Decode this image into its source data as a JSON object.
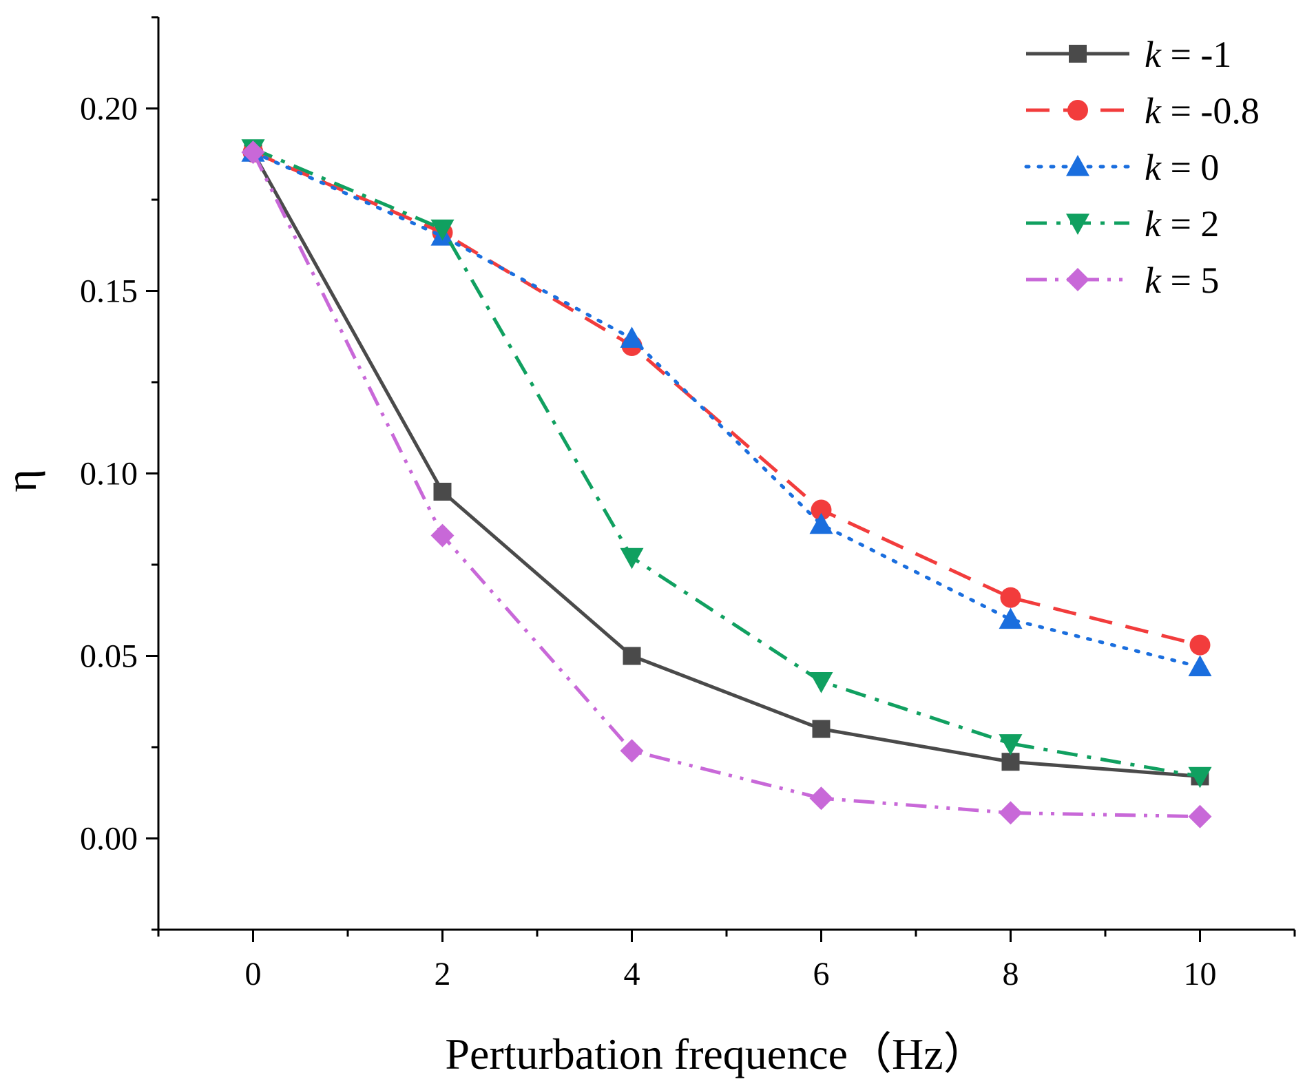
{
  "chart_data": {
    "type": "line",
    "title": "",
    "xlabel": "Perturbation frequence（Hz）",
    "ylabel": "η",
    "xlim": [
      -1,
      11
    ],
    "ylim": [
      -0.025,
      0.225
    ],
    "x": [
      0,
      2,
      4,
      6,
      8,
      10
    ],
    "xticks": [
      0,
      2,
      4,
      6,
      8,
      10
    ],
    "xtick_labels": [
      "0",
      "2",
      "4",
      "6",
      "8",
      "10"
    ],
    "yticks": [
      0.0,
      0.05,
      0.1,
      0.15,
      0.2
    ],
    "ytick_labels": [
      "0.00",
      "0.05",
      "0.10",
      "0.15",
      "0.20"
    ],
    "legend_position": "top-right",
    "series": [
      {
        "name": "k = -1",
        "var": "k",
        "value_label": "= -1",
        "values": [
          0.188,
          0.095,
          0.05,
          0.03,
          0.021,
          0.017
        ],
        "color": "#4a4a4a",
        "dash": "solid",
        "marker": "square"
      },
      {
        "name": "k = -0.8",
        "var": "k",
        "value_label": "= -0.8",
        "values": [
          0.188,
          0.166,
          0.135,
          0.09,
          0.066,
          0.053
        ],
        "color": "#f23c3c",
        "dash": "dash",
        "marker": "circle"
      },
      {
        "name": "k = 0",
        "var": "k",
        "value_label": "= 0",
        "values": [
          0.188,
          0.165,
          0.137,
          0.086,
          0.06,
          0.047
        ],
        "color": "#1a6ede",
        "dash": "dot",
        "marker": "triangle-up"
      },
      {
        "name": "k = 2",
        "var": "k",
        "value_label": "= 2",
        "values": [
          0.189,
          0.167,
          0.077,
          0.043,
          0.026,
          0.017
        ],
        "color": "#10a060",
        "dash": "dashdot",
        "marker": "triangle-down"
      },
      {
        "name": "k = 5",
        "var": "k",
        "value_label": "= 5",
        "values": [
          0.188,
          0.083,
          0.024,
          0.011,
          0.007,
          0.006
        ],
        "color": "#c868d8",
        "dash": "dashdotdot",
        "marker": "diamond"
      }
    ]
  }
}
